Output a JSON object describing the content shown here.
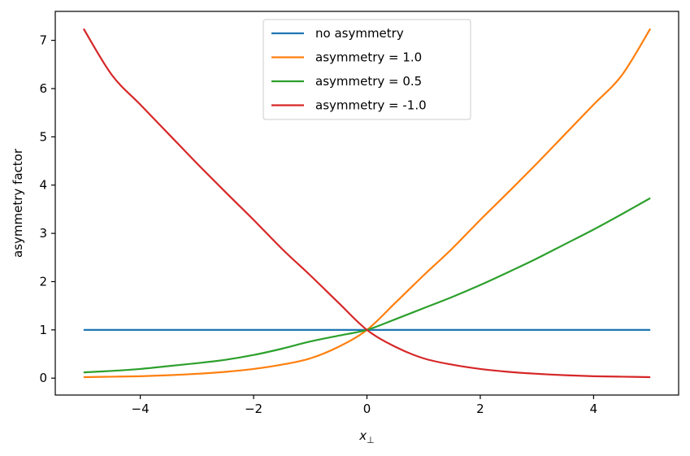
{
  "chart_data": {
    "type": "line",
    "title": "",
    "xlabel": "x",
    "xlabel_subscript": "⊥",
    "ylabel": "asymmetry factor",
    "xlim": [
      -5.5,
      5.5
    ],
    "ylim": [
      -0.35,
      7.6
    ],
    "xticks": [
      -4,
      -2,
      0,
      2,
      4
    ],
    "xtick_labels": [
      "−4",
      "−2",
      "0",
      "2",
      "4"
    ],
    "yticks": [
      0,
      1,
      2,
      3,
      4,
      5,
      6,
      7
    ],
    "ytick_labels": [
      "0",
      "1",
      "2",
      "3",
      "4",
      "5",
      "6",
      "7"
    ],
    "grid": false,
    "legend_position": "top-center",
    "x": [
      -5,
      -4.5,
      -4,
      -3.5,
      -3,
      -2.5,
      -2,
      -1.5,
      -1,
      -0.5,
      0,
      0.5,
      1,
      1.5,
      2,
      2.5,
      3,
      3.5,
      4,
      4.5,
      5
    ],
    "series": [
      {
        "name": "no asymmetry",
        "color": "#1f77b4",
        "values": [
          1,
          1,
          1,
          1,
          1,
          1,
          1,
          1,
          1,
          1,
          1,
          1,
          1,
          1,
          1,
          1,
          1,
          1,
          1,
          1,
          1
        ]
      },
      {
        "name": "asymmetry = 1.0",
        "color": "#ff7f0e",
        "values": [
          0.02,
          0.03,
          0.04,
          0.06,
          0.09,
          0.13,
          0.19,
          0.28,
          0.41,
          0.65,
          1.0,
          1.56,
          2.13,
          2.68,
          3.28,
          3.86,
          4.45,
          5.06,
          5.67,
          6.28,
          7.24
        ]
      },
      {
        "name": "asymmetry = 0.5",
        "color": "#2ca02c",
        "values": [
          0.12,
          0.15,
          0.19,
          0.25,
          0.31,
          0.38,
          0.48,
          0.61,
          0.76,
          0.88,
          1.0,
          1.22,
          1.45,
          1.68,
          1.93,
          2.2,
          2.48,
          2.78,
          3.08,
          3.4,
          3.73
        ]
      },
      {
        "name": "asymmetry = -1.0",
        "color": "#d62728",
        "values": [
          7.24,
          6.28,
          5.67,
          5.06,
          4.45,
          3.86,
          3.28,
          2.68,
          2.13,
          1.56,
          1.0,
          0.65,
          0.41,
          0.28,
          0.19,
          0.13,
          0.09,
          0.06,
          0.04,
          0.03,
          0.02
        ]
      }
    ]
  }
}
